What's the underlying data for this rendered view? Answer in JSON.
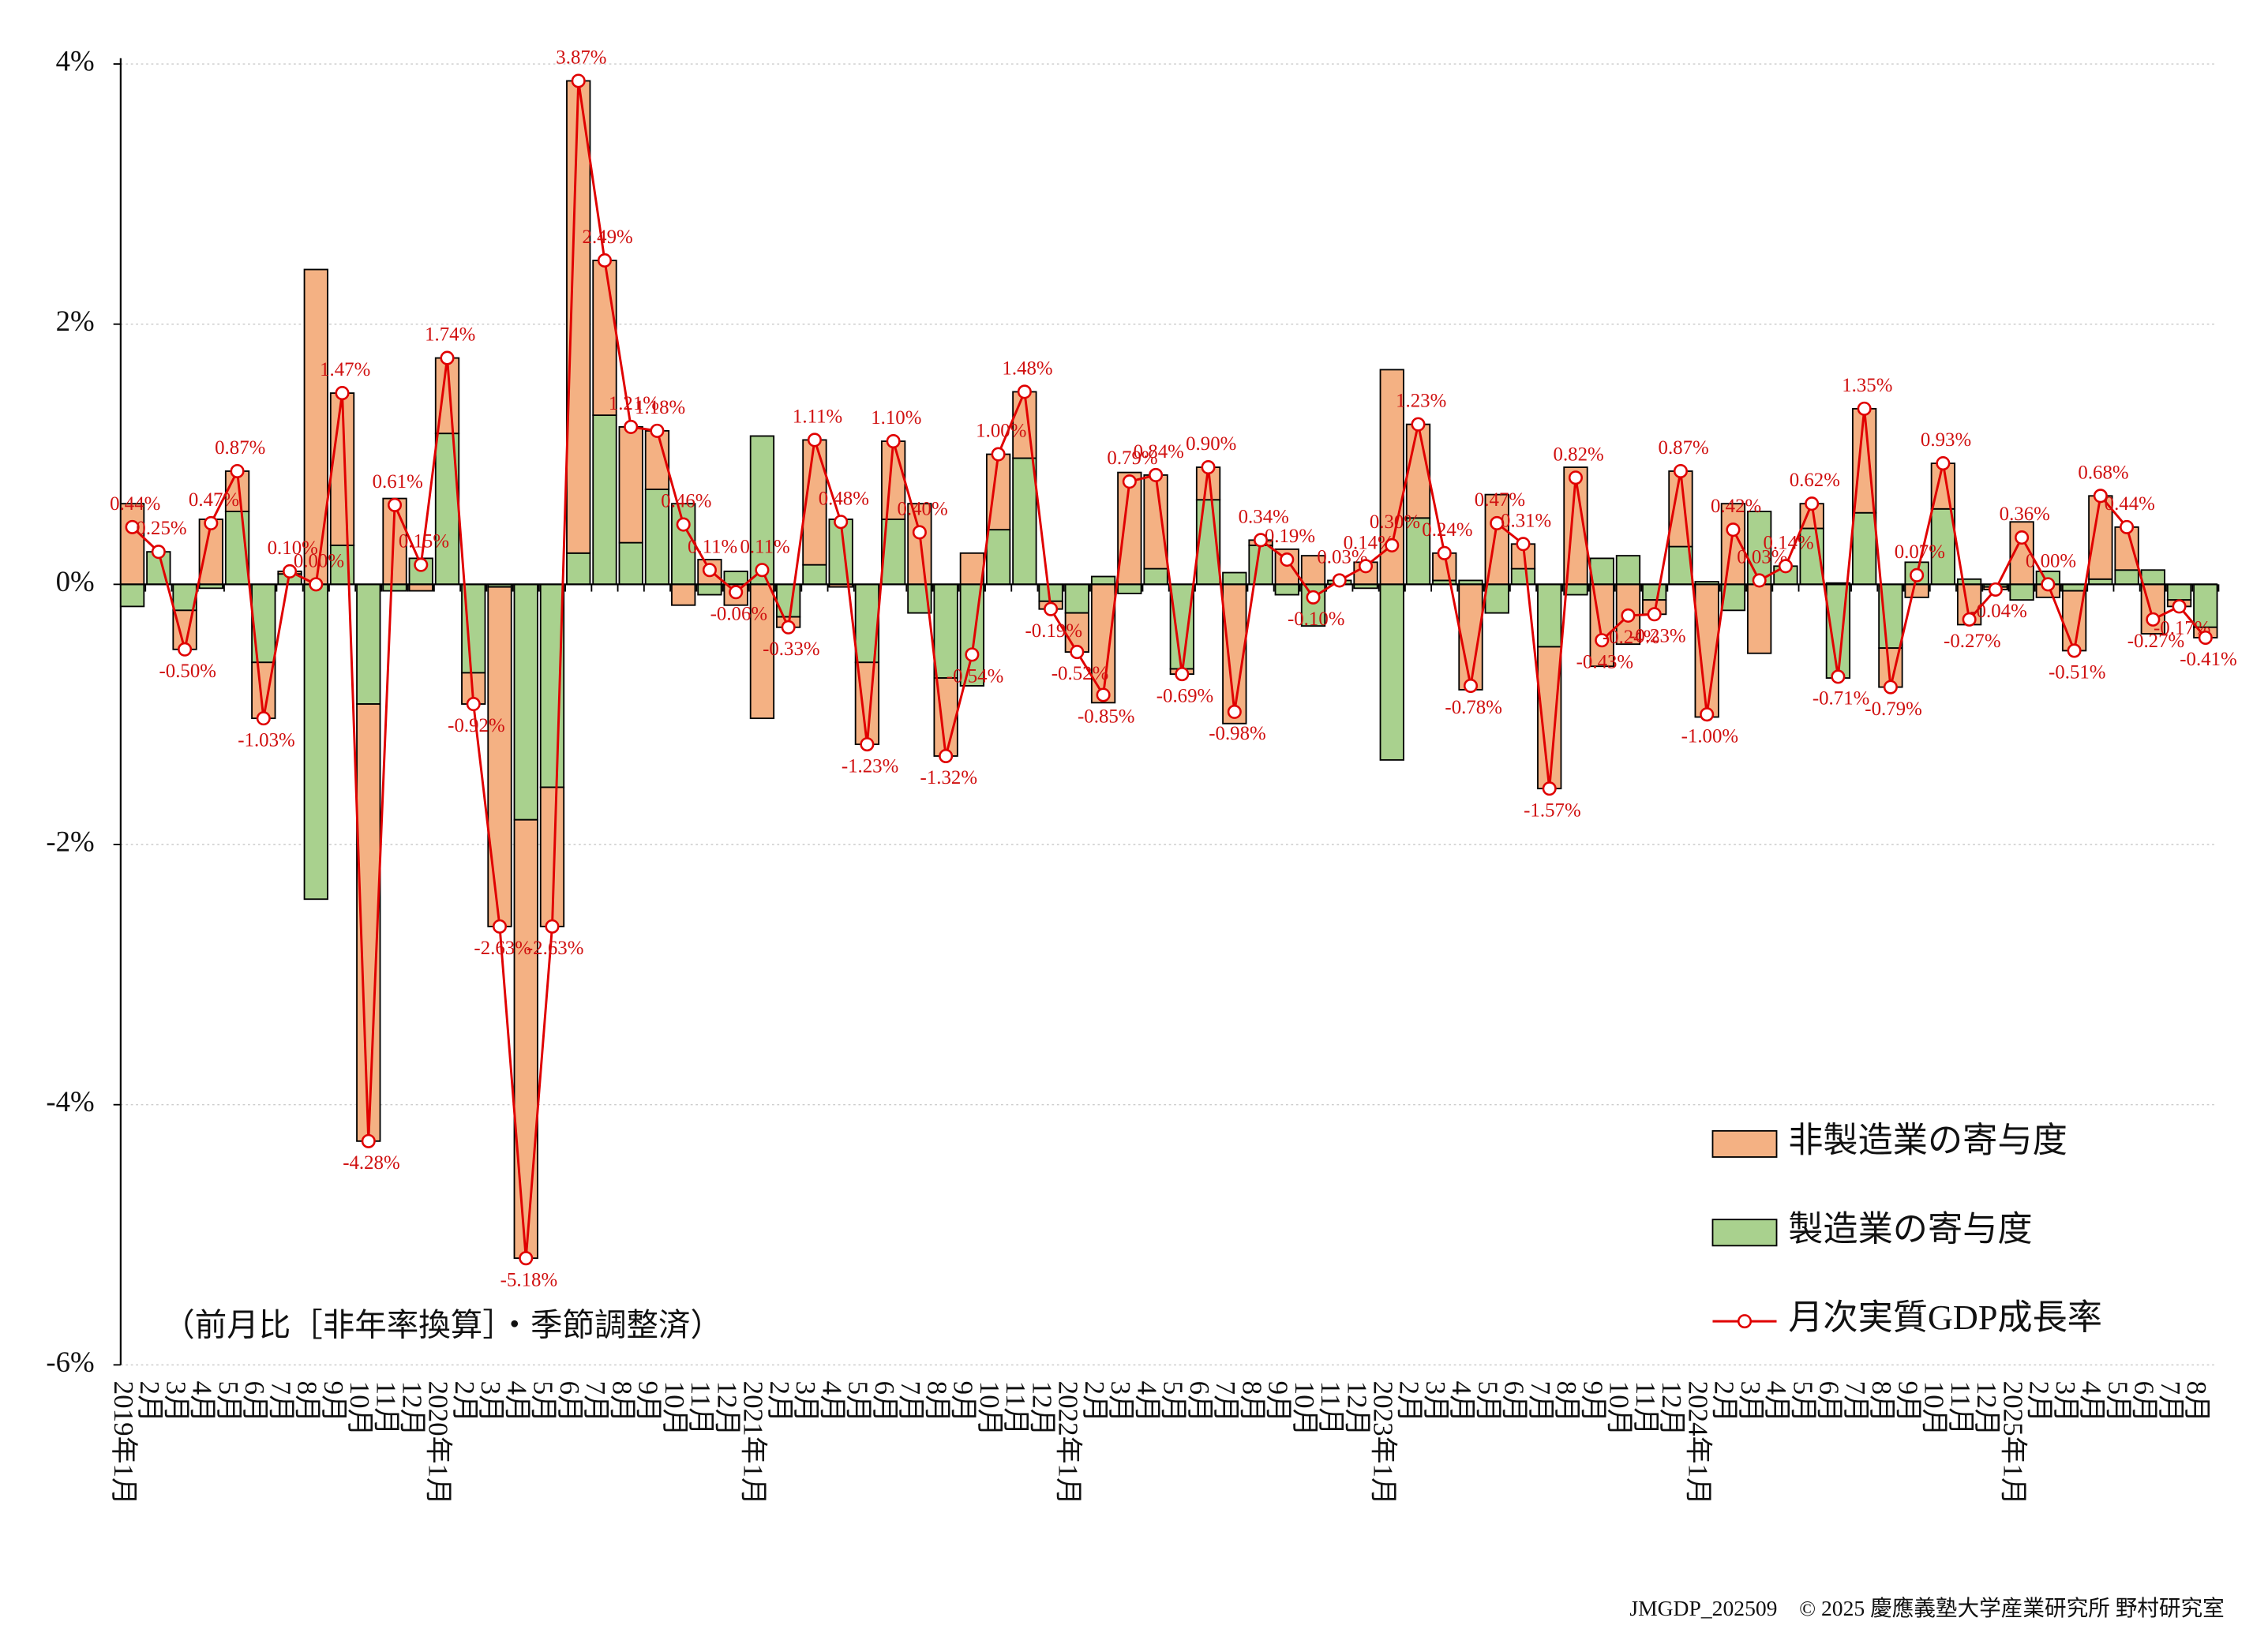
{
  "chart_data": {
    "type": "bar",
    "stacked": true,
    "categories": [
      "2019年1月",
      "2月",
      "3月",
      "4月",
      "5月",
      "6月",
      "7月",
      "8月",
      "9月",
      "10月",
      "11月",
      "12月",
      "2020年1月",
      "2月",
      "3月",
      "4月",
      "5月",
      "6月",
      "7月",
      "8月",
      "9月",
      "10月",
      "11月",
      "12月",
      "2021年1月",
      "2月",
      "3月",
      "4月",
      "5月",
      "6月",
      "7月",
      "8月",
      "9月",
      "10月",
      "11月",
      "12月",
      "2022年1月",
      "2月",
      "3月",
      "4月",
      "5月",
      "6月",
      "7月",
      "8月",
      "9月",
      "10月",
      "11月",
      "12月",
      "2023年1月",
      "2月",
      "3月",
      "4月",
      "5月",
      "6月",
      "7月",
      "8月",
      "9月",
      "10月",
      "11月",
      "12月",
      "2024年1月",
      "2月",
      "3月",
      "4月",
      "5月",
      "6月",
      "7月",
      "8月",
      "9月",
      "10月",
      "11月",
      "12月",
      "2025年1月",
      "2月",
      "3月",
      "4月",
      "5月",
      "6月",
      "7月",
      "8月"
    ],
    "series": [
      {
        "name": "非製造業の寄与度",
        "color": "#f4b183",
        "values": [
          0.62,
          0,
          -0.3,
          0.5,
          0.31,
          -0.43,
          0.02,
          2.42,
          1.17,
          -3.36,
          0.66,
          -0.05,
          0.58,
          -0.24,
          -2.61,
          -3.37,
          -1.07,
          3.63,
          1.19,
          0.89,
          0.45,
          -0.16,
          0.19,
          -0.16,
          -1.03,
          -0.08,
          0.96,
          -0.02,
          -0.63,
          0.6,
          0.62,
          -0.6,
          0.24,
          0.58,
          0.51,
          -0.06,
          -0.3,
          -0.91,
          0.86,
          0.72,
          -0.04,
          0.25,
          -1.07,
          0.04,
          0.27,
          0.22,
          0,
          0.17,
          1.65,
          0.72,
          0.21,
          -0.81,
          0.69,
          0.19,
          -1.09,
          0.9,
          -0.63,
          -0.46,
          -0.11,
          0.58,
          -1.02,
          0.62,
          -0.53,
          0,
          0.19,
          0.01,
          0.8,
          -0.3,
          -0.1,
          0.35,
          -0.31,
          -0.02,
          0.48,
          -0.1,
          -0.46,
          0.64,
          0.33,
          -0.38,
          -0.05,
          -0.08
        ]
      },
      {
        "name": "製造業の寄与度",
        "color": "#a9d18e",
        "values": [
          -0.17,
          0.25,
          -0.2,
          -0.03,
          0.56,
          -0.6,
          0.08,
          -2.42,
          0.3,
          -0.92,
          -0.05,
          0.2,
          1.16,
          -0.68,
          -0.02,
          -1.81,
          -1.56,
          0.24,
          1.3,
          0.32,
          0.73,
          0.62,
          -0.08,
          0.1,
          1.14,
          -0.25,
          0.15,
          0.5,
          -0.6,
          0.5,
          -0.22,
          -0.72,
          -0.78,
          0.42,
          0.97,
          -0.13,
          -0.22,
          0.06,
          -0.07,
          0.12,
          -0.65,
          0.65,
          0.09,
          0.3,
          -0.08,
          -0.32,
          0.03,
          -0.03,
          -1.35,
          0.51,
          0.03,
          0.03,
          -0.22,
          0.12,
          -0.48,
          -0.08,
          0.2,
          0.22,
          -0.12,
          0.29,
          0.02,
          -0.2,
          0.56,
          0.14,
          0.43,
          -0.72,
          0.55,
          -0.49,
          0.17,
          0.58,
          0.04,
          -0.02,
          -0.12,
          0.1,
          -0.05,
          0.04,
          0.11,
          0.11,
          -0.12,
          -0.33
        ]
      },
      {
        "name": "月次実質GDP成長率",
        "color": "#e00000",
        "type": "line",
        "values": [
          0.44,
          0.25,
          -0.5,
          0.47,
          0.87,
          -1.03,
          0.1,
          0,
          1.47,
          -4.28,
          0.61,
          0.15,
          1.74,
          -0.92,
          -2.63,
          -5.18,
          -2.63,
          3.87,
          2.49,
          1.21,
          1.18,
          0.46,
          0.11,
          -0.06,
          0.11,
          -0.33,
          1.11,
          0.48,
          -1.23,
          1.1,
          0.4,
          -1.32,
          -0.54,
          1,
          1.48,
          -0.19,
          -0.52,
          -0.85,
          0.79,
          0.84,
          -0.69,
          0.9,
          -0.98,
          0.34,
          0.19,
          -0.1,
          0.03,
          0.14,
          0.3,
          1.23,
          0.24,
          -0.78,
          0.47,
          0.31,
          -1.57,
          0.82,
          -0.43,
          -0.24,
          -0.23,
          0.87,
          -1,
          0.42,
          0.03,
          0.14,
          0.62,
          -0.71,
          1.35,
          -0.79,
          0.07,
          0.93,
          -0.27,
          -0.04,
          0.36,
          0,
          -0.51,
          0.68,
          0.44,
          -0.27,
          -0.17,
          -0.41
        ],
        "value_labels": [
          "0.44%",
          "0.25%",
          "-0.50%",
          "0.47%",
          "0.87%",
          "-1.03%",
          "0.10%",
          "0.00%",
          "1.47%",
          "-4.28%",
          "0.61%",
          "0.15%",
          "1.74%",
          "-0.92%",
          "-2.63%",
          "-5.18%",
          "-2.63%",
          "3.87%",
          "2.49%",
          "1.21%",
          "1.18%",
          "0.46%",
          "0.11%",
          "-0.06%",
          "0.11%",
          "-0.33%",
          "1.11%",
          "0.48%",
          "-1.23%",
          "1.10%",
          "0.40%",
          "-1.32%",
          "-0.54%",
          "1.00%",
          "1.48%",
          "-0.19%",
          "-0.52%",
          "-0.85%",
          "0.79%",
          "0.84%",
          "-0.69%",
          "0.90%",
          "-0.98%",
          "0.34%",
          "0.19%",
          "-0.10%",
          "0.03%",
          "0.14%",
          "0.30%",
          "1.23%",
          "0.24%",
          "-0.78%",
          "0.47%",
          "0.31%",
          "-1.57%",
          "0.82%",
          "-0.43%",
          "-0.24%",
          "-0.23%",
          "0.87%",
          "-1.00%",
          "0.42%",
          "0.03%",
          "0.14%",
          "0.62%",
          "-0.71%",
          "1.35%",
          "-0.79%",
          "0.07%",
          "0.93%",
          "-0.27%",
          "-0.04%",
          "0.36%",
          "0.00%",
          "-0.51%",
          "0.68%",
          "0.44%",
          "-0.27%",
          "-0.17%",
          "-0.41%"
        ]
      }
    ],
    "ylim": [
      -6,
      4
    ],
    "yticks": [
      {
        "value": -6,
        "label": "-6%"
      },
      {
        "value": -4,
        "label": "-4%"
      },
      {
        "value": -2,
        "label": "-2%"
      },
      {
        "value": 0,
        "label": "0%"
      },
      {
        "value": 2,
        "label": "2%"
      },
      {
        "value": 4,
        "label": "4%"
      }
    ],
    "grid": true,
    "legend": "lower right",
    "annotation": "（前月比［非年率換算］・季節調整済）",
    "footer": "JMGDP_202509　© 2025 慶應義塾大学産業研究所 野村研究室"
  }
}
